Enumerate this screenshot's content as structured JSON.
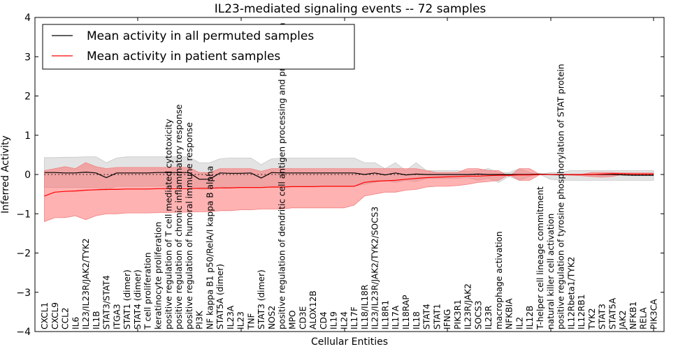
{
  "chart_data": {
    "type": "line",
    "title": "IL23-mediated signaling events -- 72 samples",
    "xlabel": "Cellular Entities",
    "ylabel": "Inferred Activity",
    "ylim": [
      -4,
      4
    ],
    "yticks": [
      -4,
      -3,
      -2,
      -1,
      0,
      1,
      2,
      3,
      4
    ],
    "ytick_labels": [
      "−4",
      "−3",
      "−2",
      "−1",
      "0",
      "1",
      "2",
      "3",
      "4"
    ],
    "grid": false,
    "legend_position": "top-left",
    "categories": [
      "CXCL1",
      "CXCL9",
      "CCL2",
      "IL6",
      "IL23/IL23R/JAK2/TYK2",
      "IL1B",
      "STAT3/STAT4",
      "ITGA3",
      "STAT1 (dimer)",
      "STAT4 (dimer)",
      "T cell proliferation",
      "keratinocyte proliferation",
      "positive regulation of T cell mediated cytotoxicity",
      "positive regulation of chronic inflammatory response",
      "positive regulation of humoral immune response",
      "PI3K",
      "NF kappa B1 p50/RelA/I kappa B alpha",
      "STAT5A (dimer)",
      "IL23A",
      "IL23",
      "TNF",
      "STAT3 (dimer)",
      "NOS2",
      "positive regulation of dendritic cell antigen processing and presentation",
      "MPO",
      "CD3E",
      "ALOX12B",
      "CD4",
      "IL19",
      "IL24",
      "IL17F",
      "IL18/IL18R",
      "IL23/IL23R/JAK2/TYK2/SOCS3",
      "IL18R1",
      "IL17A",
      "IL18RAP",
      "IL18",
      "STAT4",
      "STAT1",
      "IFNG",
      "PIK3R1",
      "IL23R/JAK2",
      "SOCS3",
      "IL23R",
      "macrophage activation",
      "NFKBIA",
      "IL2",
      "IL12B",
      "T-helper cell lineage commitment",
      "natural killer cell activation",
      "positive regulation of tyrosine phosphorylation of STAT protein",
      "IL12Rbeta1/TYK2",
      "IL12RB1",
      "TYK2",
      "STAT3",
      "STAT5A",
      "JAK2",
      "NFKB1",
      "RELA",
      "PIK3CA"
    ],
    "series": [
      {
        "name": "Mean activity in all permuted samples",
        "color": "#000000",
        "values": [
          0.05,
          0.05,
          0.04,
          0.04,
          0.06,
          0.04,
          -0.08,
          0.04,
          0.04,
          0.04,
          0.04,
          0.05,
          0.05,
          0.05,
          0.05,
          -0.12,
          -0.12,
          0.04,
          0.03,
          0.03,
          0.04,
          -0.09,
          0.05,
          0.04,
          0.04,
          0.04,
          0.04,
          0.04,
          0.04,
          0.04,
          0.04,
          0.0,
          0.04,
          -0.01,
          0.04,
          -0.01,
          0.01,
          0.0,
          0.0,
          0.0,
          0.0,
          0.0,
          0.01,
          0.0,
          0.0,
          0.0,
          0.0,
          0.0,
          0.01,
          0.0,
          -0.01,
          0.0,
          0.0,
          0.0,
          0.0,
          0.0,
          -0.01,
          -0.02,
          -0.02,
          -0.02
        ],
        "band_upper": [
          0.43,
          0.43,
          0.44,
          0.44,
          0.45,
          0.45,
          0.3,
          0.42,
          0.45,
          0.45,
          0.45,
          0.45,
          0.45,
          0.45,
          0.45,
          0.3,
          0.3,
          0.4,
          0.42,
          0.42,
          0.42,
          0.25,
          0.4,
          0.42,
          0.42,
          0.42,
          0.42,
          0.42,
          0.42,
          0.42,
          0.42,
          0.3,
          0.3,
          0.15,
          0.3,
          0.1,
          0.3,
          0.1,
          0.1,
          0.1,
          0.1,
          0.08,
          0.1,
          0.15,
          0.05,
          0.05,
          0.15,
          0.05,
          0.0,
          0.05,
          0.05,
          0.1,
          0.1,
          0.1,
          0.1,
          0.1,
          0.1,
          0.1,
          0.1,
          0.1
        ],
        "band_lower": [
          -0.33,
          -0.33,
          -0.33,
          -0.33,
          -0.33,
          -0.33,
          -0.4,
          -0.3,
          -0.3,
          -0.3,
          -0.3,
          -0.3,
          -0.3,
          -0.3,
          -0.3,
          -0.38,
          -0.38,
          -0.3,
          -0.35,
          -0.3,
          -0.3,
          -0.3,
          -0.3,
          -0.3,
          -0.3,
          -0.3,
          -0.3,
          -0.3,
          -0.3,
          -0.3,
          -0.3,
          -0.25,
          -0.2,
          -0.15,
          -0.2,
          -0.15,
          -0.18,
          -0.1,
          -0.1,
          -0.1,
          -0.1,
          -0.08,
          -0.15,
          -0.1,
          -0.2,
          -0.05,
          -0.15,
          -0.05,
          0.0,
          -0.12,
          -0.15,
          -0.15,
          -0.15,
          -0.15,
          -0.15,
          -0.15,
          -0.15,
          -0.15,
          -0.15,
          -0.15
        ]
      },
      {
        "name": "Mean activity in patient samples",
        "color": "#ff0000",
        "values": [
          -0.55,
          -0.45,
          -0.43,
          -0.42,
          -0.4,
          -0.39,
          -0.38,
          -0.38,
          -0.37,
          -0.37,
          -0.37,
          -0.36,
          -0.36,
          -0.36,
          -0.36,
          -0.35,
          -0.35,
          -0.34,
          -0.34,
          -0.33,
          -0.33,
          -0.33,
          -0.32,
          -0.32,
          -0.31,
          -0.31,
          -0.31,
          -0.3,
          -0.3,
          -0.3,
          -0.3,
          -0.2,
          -0.17,
          -0.16,
          -0.15,
          -0.12,
          -0.1,
          -0.08,
          -0.07,
          -0.06,
          -0.05,
          -0.04,
          -0.04,
          -0.03,
          -0.02,
          -0.02,
          -0.01,
          -0.01,
          0.0,
          0.0,
          0.0,
          0.0,
          0.0,
          0.0,
          0.01,
          0.02,
          0.02,
          0.01,
          0.01,
          0.01
        ],
        "band_upper": [
          0.1,
          0.15,
          0.2,
          0.15,
          0.3,
          0.2,
          0.15,
          0.18,
          0.18,
          0.18,
          0.18,
          0.18,
          0.18,
          0.18,
          0.18,
          0.05,
          0.05,
          0.15,
          0.15,
          0.15,
          0.15,
          0.08,
          0.15,
          0.15,
          0.15,
          0.15,
          0.15,
          0.15,
          0.15,
          0.15,
          0.15,
          0.15,
          0.15,
          0.15,
          0.15,
          0.15,
          0.15,
          0.1,
          0.05,
          0.05,
          0.05,
          0.15,
          0.15,
          0.1,
          0.1,
          -0.05,
          0.15,
          0.15,
          0.0,
          0.0,
          0.0,
          0.0,
          0.0,
          0.05,
          0.05,
          0.05,
          0.04,
          0.04,
          0.04,
          0.04
        ],
        "band_lower": [
          -1.2,
          -1.1,
          -1.1,
          -1.05,
          -1.15,
          -1.05,
          -1.0,
          -1.0,
          -0.98,
          -0.98,
          -0.98,
          -0.97,
          -0.97,
          -0.96,
          -0.96,
          -0.95,
          -0.95,
          -0.92,
          -0.92,
          -0.9,
          -0.9,
          -0.88,
          -0.88,
          -0.88,
          -0.85,
          -0.85,
          -0.85,
          -0.85,
          -0.85,
          -0.85,
          -0.78,
          -0.55,
          -0.5,
          -0.45,
          -0.45,
          -0.4,
          -0.38,
          -0.32,
          -0.3,
          -0.3,
          -0.28,
          -0.25,
          -0.2,
          -0.18,
          -0.15,
          0.0,
          -0.15,
          -0.15,
          0.0,
          0.0,
          0.0,
          -0.02,
          -0.03,
          -0.05,
          -0.07,
          -0.05,
          0.0,
          0.0,
          0.0,
          0.0
        ]
      }
    ],
    "baseline": {
      "value": 0,
      "style": "dotted",
      "color": "#000000"
    },
    "legend": [
      {
        "label": "Mean activity in all permuted samples",
        "color": "#000000"
      },
      {
        "label": "Mean activity in patient samples",
        "color": "#ff0000"
      }
    ]
  }
}
